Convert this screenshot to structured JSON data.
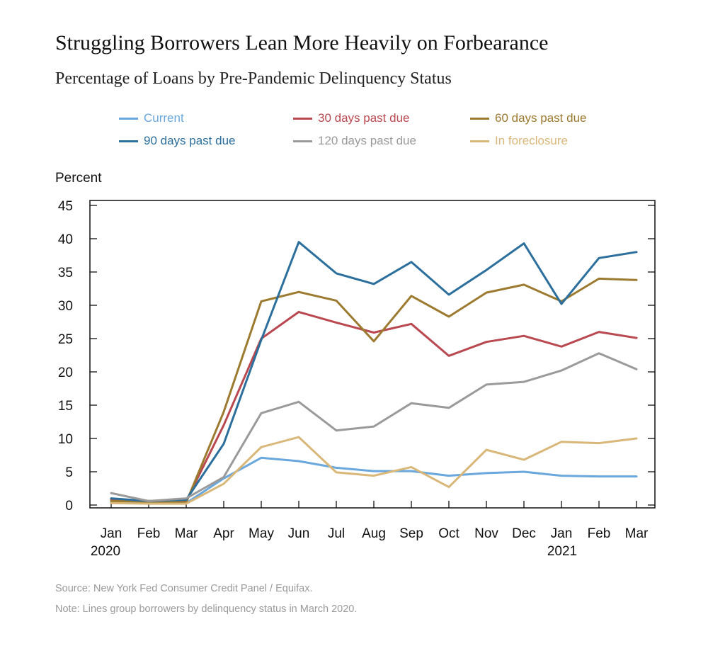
{
  "chart_data": {
    "type": "line",
    "title": "Struggling Borrowers Lean More Heavily on Forbearance",
    "subtitle": "Percentage of Loans by Pre-Pandemic Delinquency Status",
    "ylabel": "Percent",
    "xlabel": "",
    "ylim": [
      0,
      45
    ],
    "yticks": [
      "0",
      "5",
      "10",
      "15",
      "20",
      "25",
      "30",
      "35",
      "40",
      "45"
    ],
    "categories": [
      "Jan",
      "Feb",
      "Mar",
      "Apr",
      "May",
      "Jun",
      "Jul",
      "Aug",
      "Sep",
      "Oct",
      "Nov",
      "Dec",
      "Jan",
      "Feb",
      "Mar"
    ],
    "year_labels": {
      "2020": "2020",
      "2021": "2021"
    },
    "grid": false,
    "legend_position": "top",
    "series": [
      {
        "name": "Current",
        "color": "#6aa7dc",
        "values": [
          0.5,
          0.4,
          0.3,
          4.0,
          7.1,
          6.6,
          5.6,
          5.1,
          5.1,
          4.4,
          4.8,
          5.0,
          4.4,
          4.3,
          4.3
        ]
      },
      {
        "name": "30 days past due",
        "color": "#b94850",
        "values": [
          0.8,
          0.6,
          0.6,
          12.0,
          25.0,
          29.0,
          27.4,
          25.9,
          27.2,
          22.4,
          24.5,
          25.4,
          23.8,
          26.0,
          25.1
        ]
      },
      {
        "name": "60 days past due",
        "color": "#9c7a2f",
        "values": [
          0.6,
          0.5,
          0.4,
          14.0,
          30.6,
          32.0,
          30.7,
          24.6,
          31.4,
          28.3,
          31.9,
          33.1,
          30.6,
          34.0,
          33.8
        ]
      },
      {
        "name": "90 days past due",
        "color": "#2c6f9c",
        "values": [
          1.0,
          0.6,
          0.8,
          9.2,
          24.8,
          39.5,
          34.8,
          33.2,
          36.5,
          31.6,
          35.3,
          39.3,
          30.2,
          37.1,
          38.0
        ]
      },
      {
        "name": "120 days past due",
        "color": "#9a9a9a",
        "values": [
          1.8,
          0.6,
          1.0,
          4.2,
          13.8,
          15.5,
          11.2,
          11.8,
          15.3,
          14.6,
          18.1,
          18.5,
          20.2,
          22.8,
          20.4
        ]
      },
      {
        "name": "In foreclosure",
        "color": "#d9b779",
        "values": [
          0.3,
          0.2,
          0.2,
          3.2,
          8.7,
          10.2,
          4.9,
          4.4,
          5.7,
          2.7,
          8.3,
          6.8,
          9.5,
          9.3,
          10.0
        ]
      }
    ]
  },
  "footer": {
    "source": "Source: New York Fed Consumer Credit Panel / Equifax.",
    "note": "Note: Lines group borrowers by delinquency status in March 2020."
  }
}
